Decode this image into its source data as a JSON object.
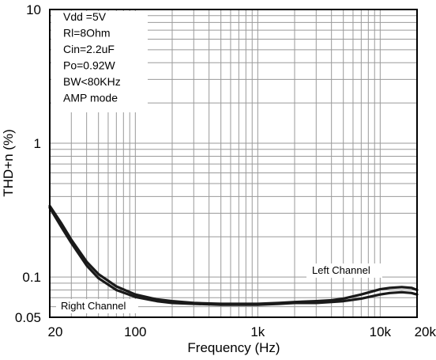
{
  "chart_data": {
    "type": "line",
    "x_scale": "log",
    "y_scale": "log",
    "xlim": [
      20,
      20000
    ],
    "ylim": [
      0.05,
      10
    ],
    "xlabel": "Frequency (Hz)",
    "ylabel": "THD+n (%)",
    "grid": true,
    "x_ticks": [
      {
        "value": 20,
        "label": "20"
      },
      {
        "value": 100,
        "label": "100"
      },
      {
        "value": 1000,
        "label": "1k"
      },
      {
        "value": 10000,
        "label": "10k"
      },
      {
        "value": 20000,
        "label": "20k"
      }
    ],
    "y_ticks": [
      {
        "value": 0.05,
        "label": "0.05"
      },
      {
        "value": 0.1,
        "label": "0.1"
      },
      {
        "value": 1,
        "label": "1"
      },
      {
        "value": 10,
        "label": "10"
      }
    ],
    "annotations": [
      "Vdd =5V",
      "Rl=8Ohm",
      "Cin=2.2uF",
      "Po=0.92W",
      "BW<80KHz",
      "AMP mode"
    ],
    "series": [
      {
        "name": "Left Channel",
        "x": [
          20,
          25,
          30,
          40,
          50,
          70,
          100,
          150,
          200,
          300,
          500,
          700,
          1000,
          1500,
          2000,
          3000,
          4000,
          5000,
          7000,
          10000,
          12000,
          15000,
          18000,
          20000
        ],
        "y": [
          0.34,
          0.25,
          0.19,
          0.13,
          0.105,
          0.085,
          0.074,
          0.068,
          0.066,
          0.064,
          0.063,
          0.063,
          0.063,
          0.064,
          0.065,
          0.066,
          0.067,
          0.069,
          0.074,
          0.081,
          0.083,
          0.084,
          0.083,
          0.08
        ]
      },
      {
        "name": "Right Channel",
        "x": [
          20,
          25,
          30,
          40,
          50,
          70,
          100,
          150,
          200,
          300,
          500,
          700,
          1000,
          1500,
          2000,
          3000,
          4000,
          5000,
          7000,
          10000,
          12000,
          15000,
          18000,
          20000
        ],
        "y": [
          0.33,
          0.235,
          0.18,
          0.122,
          0.098,
          0.08,
          0.071,
          0.066,
          0.064,
          0.063,
          0.062,
          0.062,
          0.062,
          0.063,
          0.064,
          0.064,
          0.065,
          0.066,
          0.069,
          0.074,
          0.076,
          0.077,
          0.076,
          0.074
        ]
      }
    ]
  }
}
